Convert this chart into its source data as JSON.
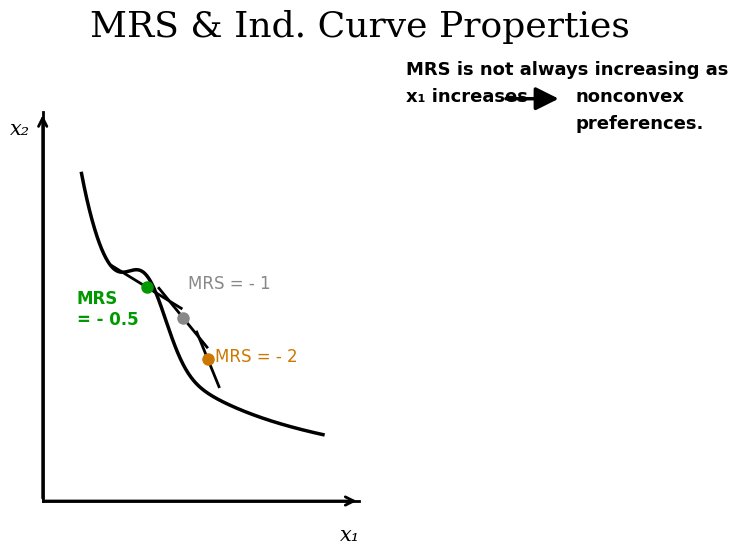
{
  "title": "MRS & Ind. Curve Properties",
  "title_fontsize": 26,
  "background_color": "#ffffff",
  "text_color": "#000000",
  "subtitle_line1": "MRS is not always increasing as",
  "subtitle_line2": "x₁ increases",
  "arrow_text_line1": "nonconvex",
  "arrow_text_line2": "preferences.",
  "x_label": "x₁",
  "y_label": "x₂",
  "mrs_neg05_label": "MRS\n= - 0.5",
  "mrs_neg05_color": "#009900",
  "mrs_neg1_label": "MRS = - 1",
  "mrs_neg1_color": "#888888",
  "mrs_neg2_label": "MRS = - 2",
  "mrs_neg2_color": "#cc7700",
  "curve_color": "#000000",
  "axlim": [
    0,
    7
  ],
  "p1x": 2.3,
  "p1y": 3.85,
  "p2x": 3.1,
  "p2y": 3.3,
  "p3x": 3.65,
  "p3y": 2.55
}
